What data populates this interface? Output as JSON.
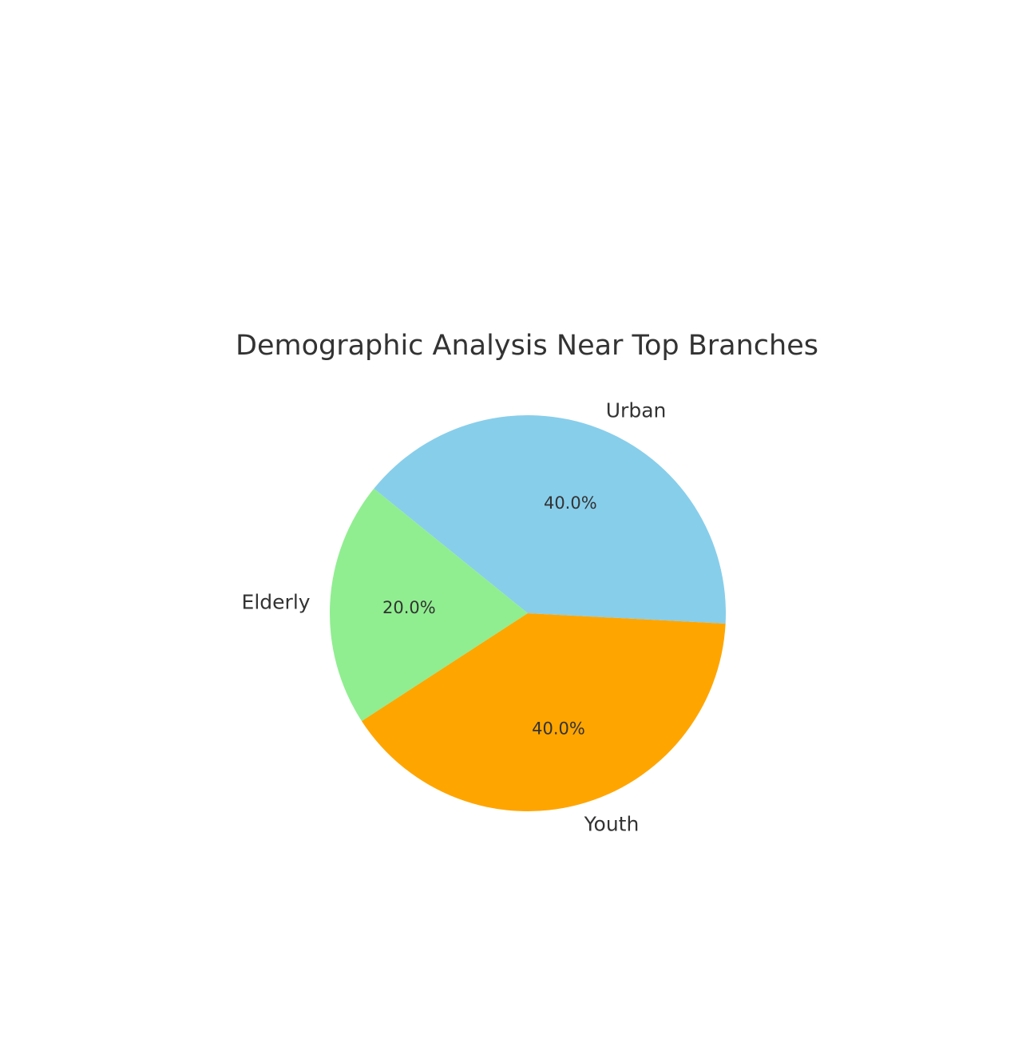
{
  "chart_data": {
    "type": "pie",
    "title": "Demographic Analysis Near Top Branches",
    "categories": [
      "Urban",
      "Elderly",
      "Youth"
    ],
    "values": [
      40,
      20,
      40
    ],
    "percent_labels": [
      "40.0%",
      "20.0%",
      "40.0%"
    ],
    "colors": [
      "#87ceeb",
      "#90ee90",
      "#ffa500"
    ],
    "legend": "none"
  }
}
